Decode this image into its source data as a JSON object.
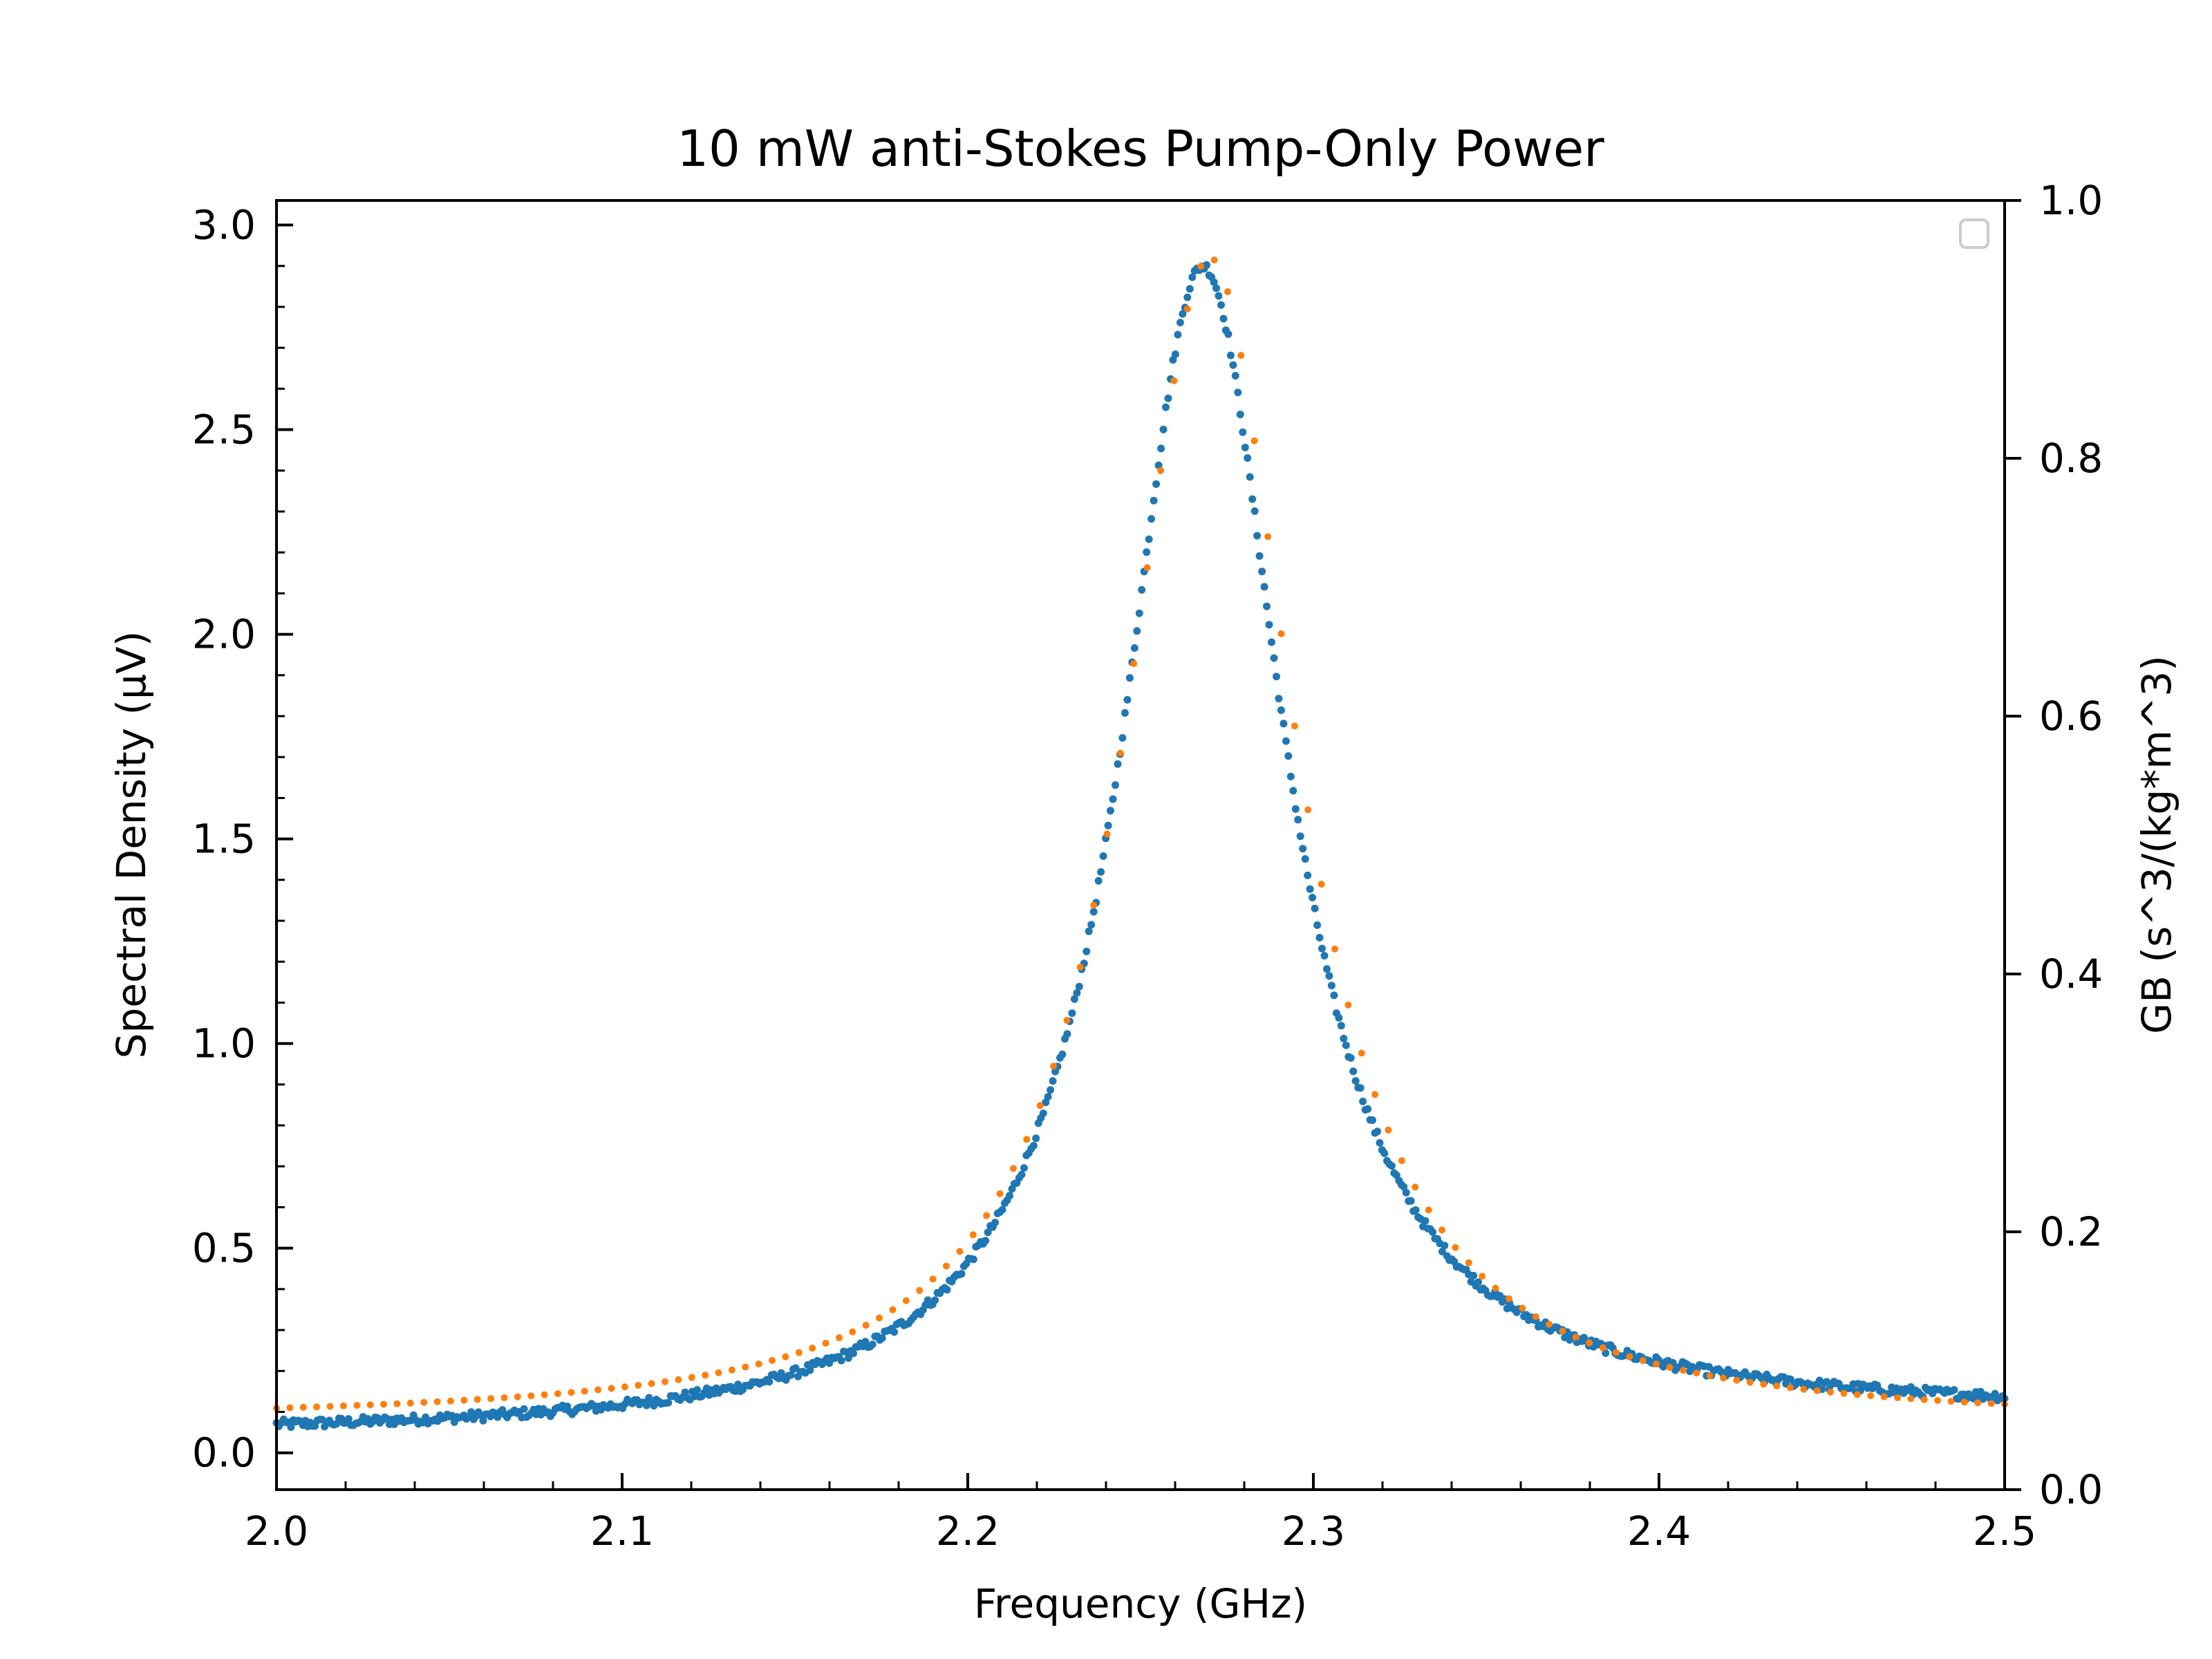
{
  "chart_data": {
    "type": "scatter",
    "title": "10 mW anti-Stokes Pump-Only Power",
    "xlabel": "Frequency (GHz)",
    "ylabel": "Spectral Density (μV)",
    "y2label": "GB (s^3/(kg*m^3)",
    "xlim": [
      2.0,
      2.5
    ],
    "ylim": [
      -0.09,
      3.06
    ],
    "y2lim": [
      0.0,
      1.0
    ],
    "xticks": [
      "2.0",
      "2.1",
      "2.2",
      "2.3",
      "2.4",
      "2.5"
    ],
    "yticks": [
      "0.0",
      "0.5",
      "1.0",
      "1.5",
      "2.0",
      "2.5",
      "3.0"
    ],
    "y2ticks": [
      "0.0",
      "0.2",
      "0.4",
      "0.6",
      "0.8",
      "1.0"
    ],
    "legend": {
      "position": "top-right",
      "entries": []
    },
    "grid": false,
    "series": [
      {
        "role": "measured",
        "color": "#1f77b4",
        "model": "lorentzian",
        "peak_x": 2.268,
        "peak_y": 2.9,
        "half_width": 0.0285,
        "offset": 0.0,
        "left_edge_y": 0.07,
        "right_edge_y": 0.14,
        "n_points": 720,
        "noise": 0.012
      },
      {
        "role": "fit",
        "color": "#ff7f0e",
        "model": "lorentzian",
        "peak_x": 2.27,
        "peak_y": 2.92,
        "half_width": 0.03,
        "offset": 0.0,
        "left_edge_y": 0.11,
        "right_edge_y": 0.12,
        "n_points": 130,
        "noise": 0.0
      }
    ]
  }
}
